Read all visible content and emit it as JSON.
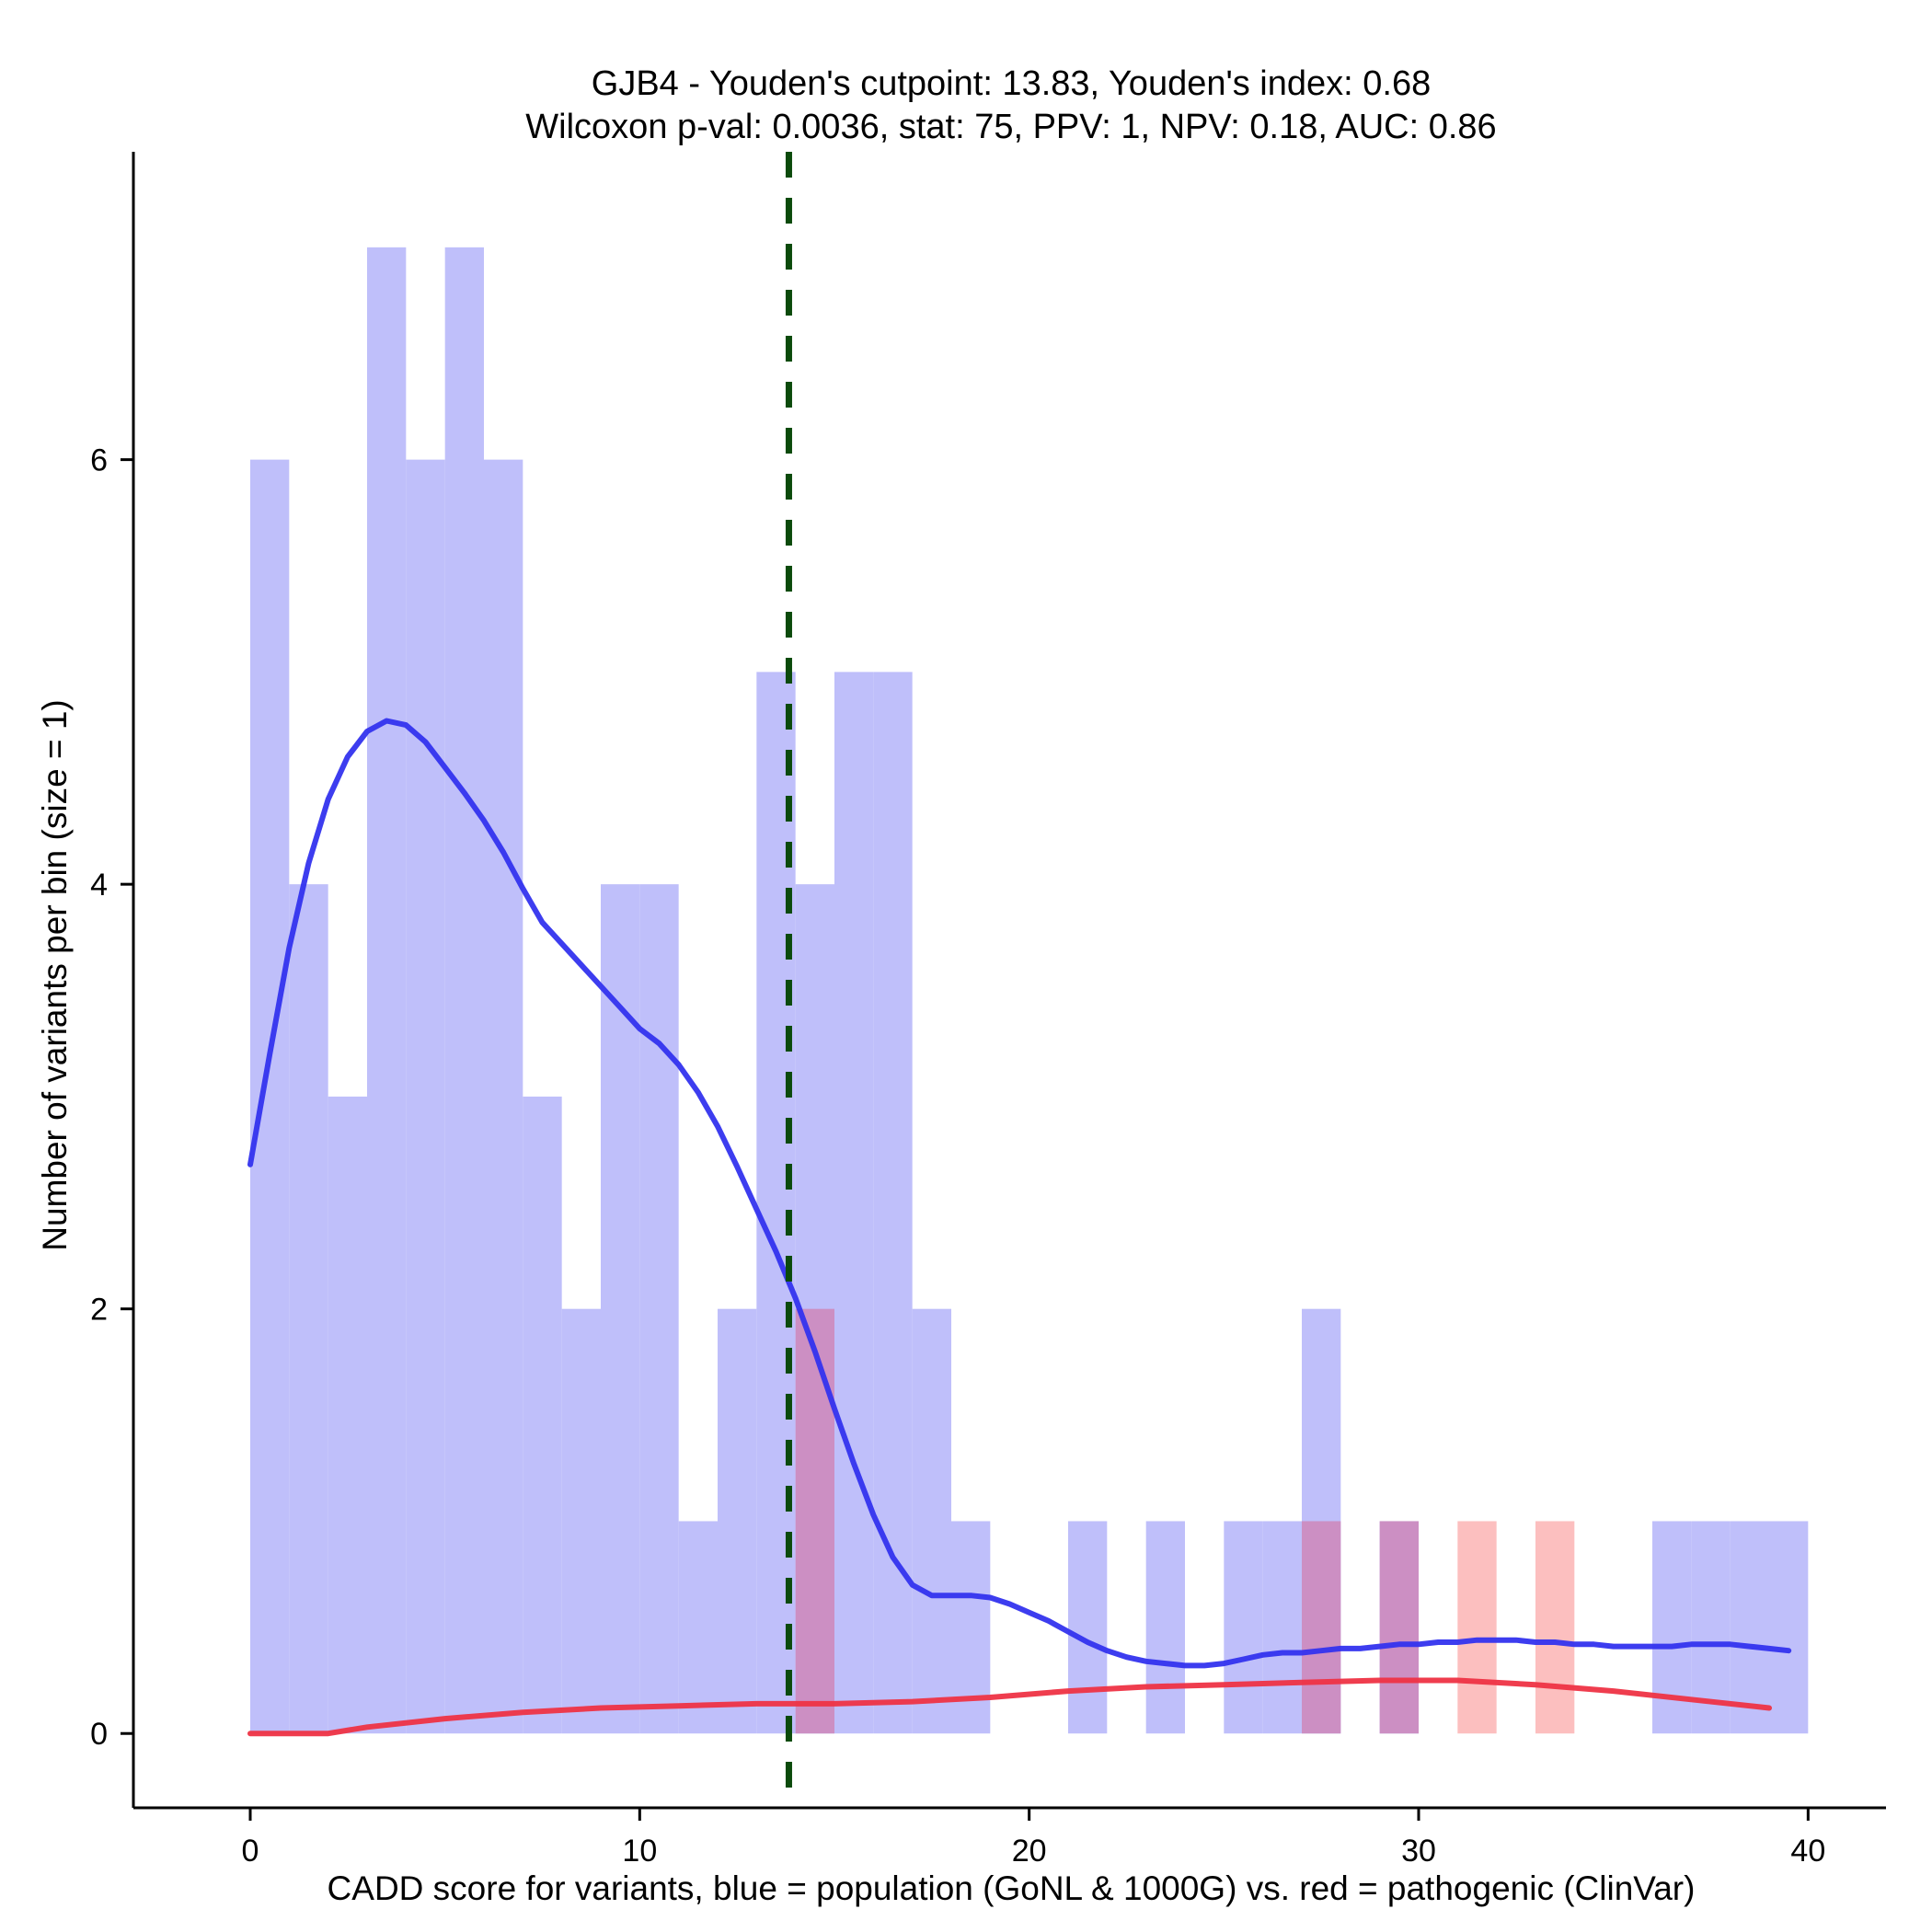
{
  "chart_data": {
    "type": "bar",
    "title_line1": "GJB4 - Youden's cutpoint: 13.83, Youden's index: 0.68",
    "title_line2": "Wilcoxon p-val: 0.0036, stat: 75, PPV: 1, NPV: 0.18, AUC: 0.86",
    "xlabel": "CADD score for variants, blue = population (GoNL & 1000G) vs. red = pathogenic (ClinVar)",
    "ylabel": "Number of variants per bin (size = 1)",
    "xlim": [
      -3,
      42
    ],
    "ylim": [
      -0.35,
      7.45
    ],
    "x_ticks": [
      0,
      10,
      20,
      30,
      40
    ],
    "y_ticks": [
      0,
      2,
      4,
      6
    ],
    "x_tick_labels": [
      "0",
      "10",
      "20",
      "30",
      "40"
    ],
    "y_tick_labels": [
      "0",
      "2",
      "4",
      "6"
    ],
    "bin_width": 1,
    "series": [
      {
        "name": "population (GoNL & 1000G)",
        "color": "#bfbffa",
        "bins": [
          {
            "x": 0,
            "count": 6
          },
          {
            "x": 1,
            "count": 4
          },
          {
            "x": 2,
            "count": 3
          },
          {
            "x": 3,
            "count": 7
          },
          {
            "x": 4,
            "count": 6
          },
          {
            "x": 5,
            "count": 7
          },
          {
            "x": 6,
            "count": 6
          },
          {
            "x": 7,
            "count": 3
          },
          {
            "x": 8,
            "count": 2
          },
          {
            "x": 9,
            "count": 4
          },
          {
            "x": 10,
            "count": 4
          },
          {
            "x": 11,
            "count": 1
          },
          {
            "x": 12,
            "count": 2
          },
          {
            "x": 13,
            "count": 5
          },
          {
            "x": 14,
            "count": 4
          },
          {
            "x": 15,
            "count": 5
          },
          {
            "x": 16,
            "count": 5
          },
          {
            "x": 17,
            "count": 2
          },
          {
            "x": 18,
            "count": 1
          },
          {
            "x": 21,
            "count": 1
          },
          {
            "x": 23,
            "count": 1
          },
          {
            "x": 25,
            "count": 1
          },
          {
            "x": 26,
            "count": 1
          },
          {
            "x": 27,
            "count": 2
          },
          {
            "x": 29,
            "count": 1
          },
          {
            "x": 36,
            "count": 1
          },
          {
            "x": 37,
            "count": 1
          },
          {
            "x": 38,
            "count": 1
          },
          {
            "x": 39,
            "count": 1
          }
        ]
      },
      {
        "name": "pathogenic (ClinVar)",
        "color": "#fa8a8a",
        "overlap_color": "#cc8fc3",
        "bins": [
          {
            "x": 14,
            "count": 2
          },
          {
            "x": 27,
            "count": 1
          },
          {
            "x": 29,
            "count": 1
          },
          {
            "x": 31,
            "count": 1
          },
          {
            "x": 33,
            "count": 1
          }
        ]
      }
    ],
    "density_lines": [
      {
        "name": "population density",
        "color": "#3333ee",
        "points": [
          [
            0,
            2.68
          ],
          [
            0.5,
            3.2
          ],
          [
            1,
            3.7
          ],
          [
            1.5,
            4.1
          ],
          [
            2,
            4.4
          ],
          [
            2.5,
            4.6
          ],
          [
            3,
            4.72
          ],
          [
            3.5,
            4.77
          ],
          [
            4,
            4.75
          ],
          [
            4.5,
            4.67
          ],
          [
            5,
            4.55
          ],
          [
            5.5,
            4.43
          ],
          [
            6,
            4.3
          ],
          [
            6.5,
            4.15
          ],
          [
            7,
            3.98
          ],
          [
            7.5,
            3.82
          ],
          [
            8,
            3.72
          ],
          [
            8.5,
            3.62
          ],
          [
            9,
            3.52
          ],
          [
            9.5,
            3.42
          ],
          [
            10,
            3.32
          ],
          [
            10.5,
            3.25
          ],
          [
            11,
            3.15
          ],
          [
            11.5,
            3.02
          ],
          [
            12,
            2.86
          ],
          [
            12.5,
            2.67
          ],
          [
            13,
            2.47
          ],
          [
            13.5,
            2.27
          ],
          [
            14,
            2.05
          ],
          [
            14.5,
            1.8
          ],
          [
            15,
            1.53
          ],
          [
            15.5,
            1.27
          ],
          [
            16,
            1.03
          ],
          [
            16.5,
            0.83
          ],
          [
            17,
            0.7
          ],
          [
            17.5,
            0.65
          ],
          [
            18,
            0.65
          ],
          [
            18.5,
            0.65
          ],
          [
            19,
            0.64
          ],
          [
            19.5,
            0.61
          ],
          [
            20,
            0.57
          ],
          [
            20.5,
            0.53
          ],
          [
            21,
            0.48
          ],
          [
            21.5,
            0.43
          ],
          [
            22,
            0.39
          ],
          [
            22.5,
            0.36
          ],
          [
            23,
            0.34
          ],
          [
            23.5,
            0.33
          ],
          [
            24,
            0.32
          ],
          [
            24.5,
            0.32
          ],
          [
            25,
            0.33
          ],
          [
            25.5,
            0.35
          ],
          [
            26,
            0.37
          ],
          [
            26.5,
            0.38
          ],
          [
            27,
            0.38
          ],
          [
            27.5,
            0.39
          ],
          [
            28,
            0.4
          ],
          [
            28.5,
            0.4
          ],
          [
            29,
            0.41
          ],
          [
            29.5,
            0.42
          ],
          [
            30,
            0.42
          ],
          [
            30.5,
            0.43
          ],
          [
            31,
            0.43
          ],
          [
            31.5,
            0.44
          ],
          [
            32,
            0.44
          ],
          [
            32.5,
            0.44
          ],
          [
            33,
            0.43
          ],
          [
            33.5,
            0.43
          ],
          [
            34,
            0.42
          ],
          [
            34.5,
            0.42
          ],
          [
            35,
            0.41
          ],
          [
            35.5,
            0.41
          ],
          [
            36,
            0.41
          ],
          [
            36.5,
            0.41
          ],
          [
            37,
            0.42
          ],
          [
            37.5,
            0.42
          ],
          [
            38,
            0.42
          ],
          [
            38.5,
            0.41
          ],
          [
            39,
            0.4
          ],
          [
            39.5,
            0.39
          ]
        ]
      },
      {
        "name": "pathogenic density",
        "color": "#ee3344",
        "points": [
          [
            0,
            0.0
          ],
          [
            2,
            0.0
          ],
          [
            3,
            0.03
          ],
          [
            5,
            0.07
          ],
          [
            7,
            0.1
          ],
          [
            9,
            0.12
          ],
          [
            11,
            0.13
          ],
          [
            13,
            0.14
          ],
          [
            15,
            0.14
          ],
          [
            17,
            0.15
          ],
          [
            19,
            0.17
          ],
          [
            21,
            0.2
          ],
          [
            23,
            0.22
          ],
          [
            25,
            0.23
          ],
          [
            27,
            0.24
          ],
          [
            29,
            0.25
          ],
          [
            30,
            0.25
          ],
          [
            31,
            0.25
          ],
          [
            33,
            0.23
          ],
          [
            35,
            0.2
          ],
          [
            37,
            0.16
          ],
          [
            39,
            0.12
          ]
        ]
      }
    ],
    "cutpoint": {
      "x": 13.83,
      "color": "#0b4a0b",
      "style": "dashed"
    }
  }
}
